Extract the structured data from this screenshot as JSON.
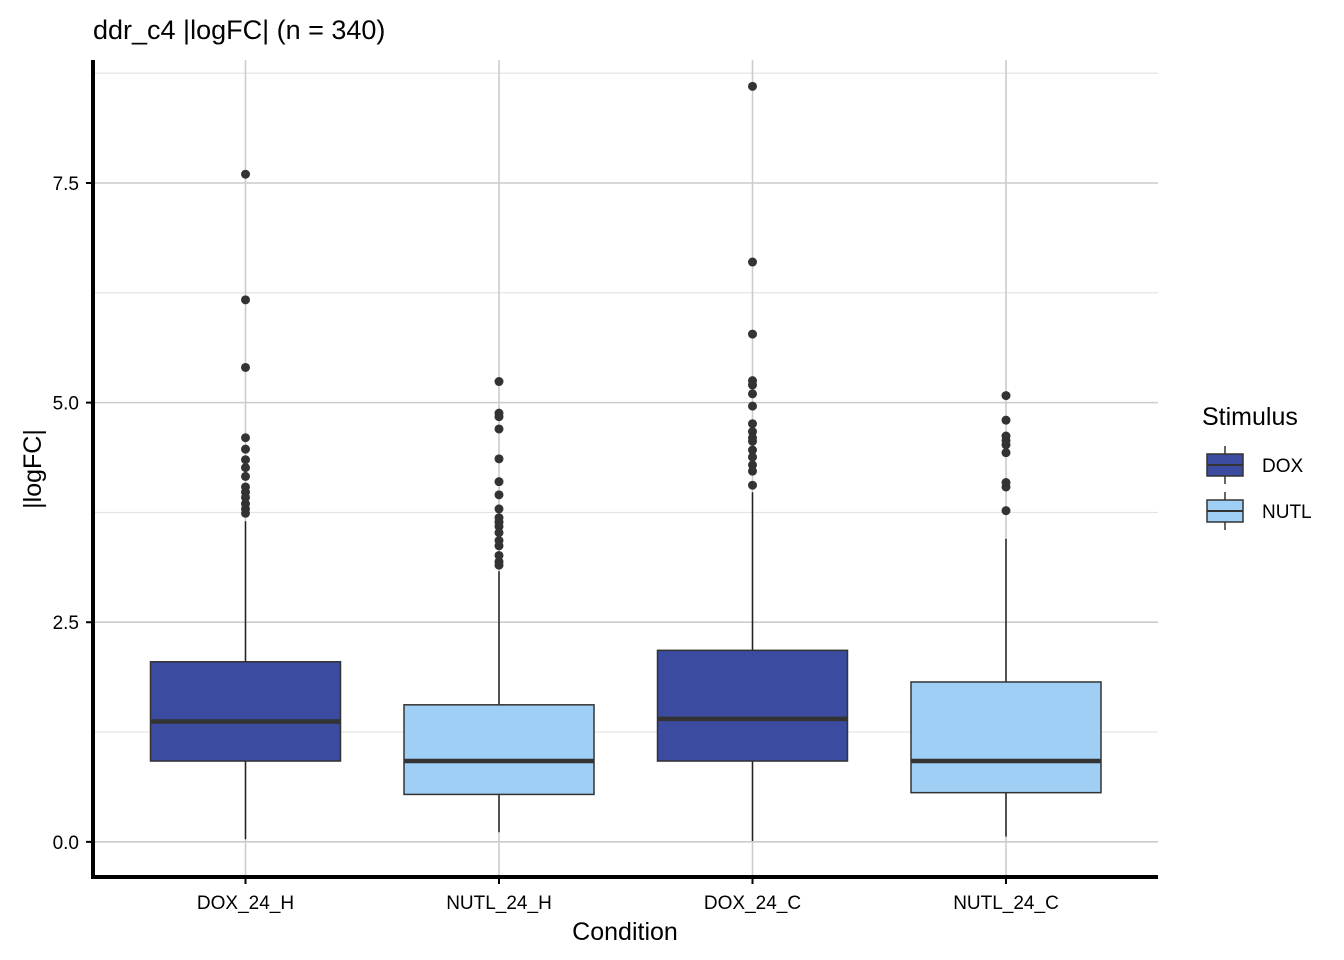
{
  "chart_data": {
    "type": "boxplot",
    "title": "ddr_c4 |logFC| (n = 340)",
    "xlabel": "Condition",
    "ylabel": "|logFC|",
    "categories": [
      "DOX_24_H",
      "NUTL_24_H",
      "DOX_24_C",
      "NUTL_24_C"
    ],
    "ylim": [
      -0.4,
      8.9
    ],
    "yticks": [
      0.0,
      2.5,
      5.0,
      7.5
    ],
    "ytick_labels": [
      "0.0",
      "2.5",
      "5.0",
      "7.5"
    ],
    "grid": true,
    "legend": {
      "title": "Stimulus",
      "position": "right",
      "entries": [
        {
          "label": "DOX",
          "color": "#3a4ba0"
        },
        {
          "label": "NUTL",
          "color": "#a0cff6"
        }
      ]
    },
    "boxes": [
      {
        "category": "DOX_24_H",
        "stimulus": "DOX",
        "q1": 0.92,
        "median": 1.37,
        "q3": 2.05,
        "whisker_low": 0.03,
        "whisker_high": 3.65,
        "outliers": [
          7.6,
          6.17,
          5.4,
          4.6,
          4.47,
          4.35,
          4.26,
          4.16,
          4.04,
          3.98,
          3.92,
          3.85,
          3.79,
          3.74
        ]
      },
      {
        "category": "NUTL_24_H",
        "stimulus": "NUTL",
        "q1": 0.54,
        "median": 0.92,
        "q3": 1.56,
        "whisker_low": 0.11,
        "whisker_high": 3.08,
        "outliers": [
          5.24,
          4.88,
          4.84,
          4.7,
          4.36,
          4.1,
          3.95,
          3.79,
          3.69,
          3.64,
          3.59,
          3.52,
          3.43,
          3.37,
          3.26,
          3.19,
          3.15
        ]
      },
      {
        "category": "DOX_24_C",
        "stimulus": "DOX",
        "q1": 0.92,
        "median": 1.4,
        "q3": 2.18,
        "whisker_low": 0.01,
        "whisker_high": 3.98,
        "outliers": [
          8.6,
          6.6,
          5.78,
          5.25,
          5.2,
          5.1,
          4.96,
          4.76,
          4.67,
          4.6,
          4.56,
          4.46,
          4.38,
          4.29,
          4.22,
          4.06
        ]
      },
      {
        "category": "NUTL_24_C",
        "stimulus": "NUTL",
        "q1": 0.56,
        "median": 0.92,
        "q3": 1.82,
        "whisker_low": 0.06,
        "whisker_high": 3.45,
        "outliers": [
          5.08,
          4.8,
          4.62,
          4.57,
          4.52,
          4.43,
          4.09,
          4.04,
          3.77
        ]
      }
    ]
  }
}
